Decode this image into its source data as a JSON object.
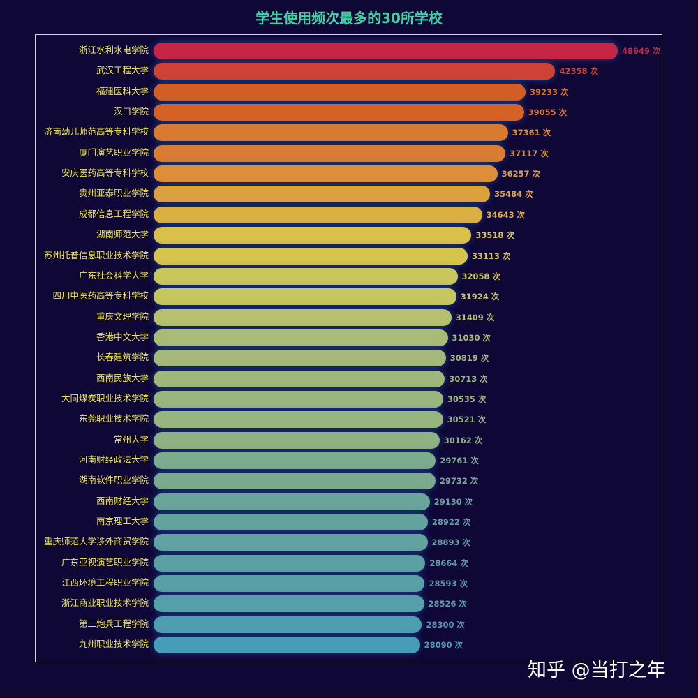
{
  "title": "学生使用频次最多的30所学校",
  "watermark": "知乎 @当打之年",
  "value_suffix": " 次",
  "chart_data": {
    "type": "bar",
    "orientation": "horizontal",
    "title": "学生使用频次最多的30所学校",
    "xlabel": "",
    "ylabel": "",
    "value_label_suffix": "次",
    "grid": false,
    "legend": null,
    "categories": [
      "浙江水利水电学院",
      "武汉工程大学",
      "福建医科大学",
      "汉口学院",
      "济南幼儿师范高等专科学校",
      "厦门演艺职业学院",
      "安庆医药高等专科学校",
      "贵州亚泰职业学院",
      "成都信息工程学院",
      "湖南师范大学",
      "苏州托普信息职业技术学院",
      "广东社会科学大学",
      "四川中医药高等专科学校",
      "重庆文理学院",
      "香港中文大学",
      "长春建筑学院",
      "西南民族大学",
      "大同煤炭职业技术学院",
      "东莞职业技术学院",
      "常州大学",
      "河南财经政法大学",
      "湖南软件职业学院",
      "西南财经大学",
      "南京理工大学",
      "重庆师范大学涉外商贸学院",
      "广东亚视演艺职业学院",
      "江西环境工程职业学院",
      "浙江商业职业技术学院",
      "第二炮兵工程学院",
      "九州职业技术学院"
    ],
    "values": [
      48949,
      42358,
      39233,
      39055,
      37361,
      37117,
      36257,
      35484,
      34643,
      33518,
      33113,
      32058,
      31924,
      31409,
      31030,
      30819,
      30713,
      30535,
      30521,
      30162,
      29761,
      29732,
      29130,
      28922,
      28893,
      28664,
      28593,
      28526,
      28300,
      28090
    ],
    "colors": [
      "#c72545",
      "#ce4336",
      "#d25e26",
      "#d46126",
      "#d87a30",
      "#d87d31",
      "#dc8f38",
      "#dda03f",
      "#dbaf45",
      "#d8c04b",
      "#d6c54c",
      "#c8c65d",
      "#c5c65f",
      "#b6c06d",
      "#a9bb76",
      "#a3b87a",
      "#a0b77c",
      "#9ab57f",
      "#99b57f",
      "#8fb184",
      "#7dab8e",
      "#7caa8e",
      "#6aa49a",
      "#64a29e",
      "#62a2a0",
      "#5ba0a5",
      "#589fa8",
      "#559fab",
      "#4e9eb0",
      "#479cb8"
    ],
    "label_colors": [
      "#c72545",
      "#ce4336",
      "#d8742c",
      "#d8742c",
      "#dd8a3a",
      "#dd8a3a",
      "#dd9f46",
      "#dda64a",
      "#dbb04e",
      "#d8be55",
      "#d6c358",
      "#c9c463",
      "#c5c465",
      "#b7bd73",
      "#a9b87c",
      "#a3b680",
      "#a0b482",
      "#9ab284",
      "#99b284",
      "#8fae89",
      "#7fa894",
      "#7ea894",
      "#6da09f",
      "#689fa2",
      "#669ea3",
      "#5f9ca8",
      "#5d9caa",
      "#5b9bab",
      "#559ab0",
      "#4f99b4"
    ],
    "xlim": [
      0,
      48949
    ]
  }
}
